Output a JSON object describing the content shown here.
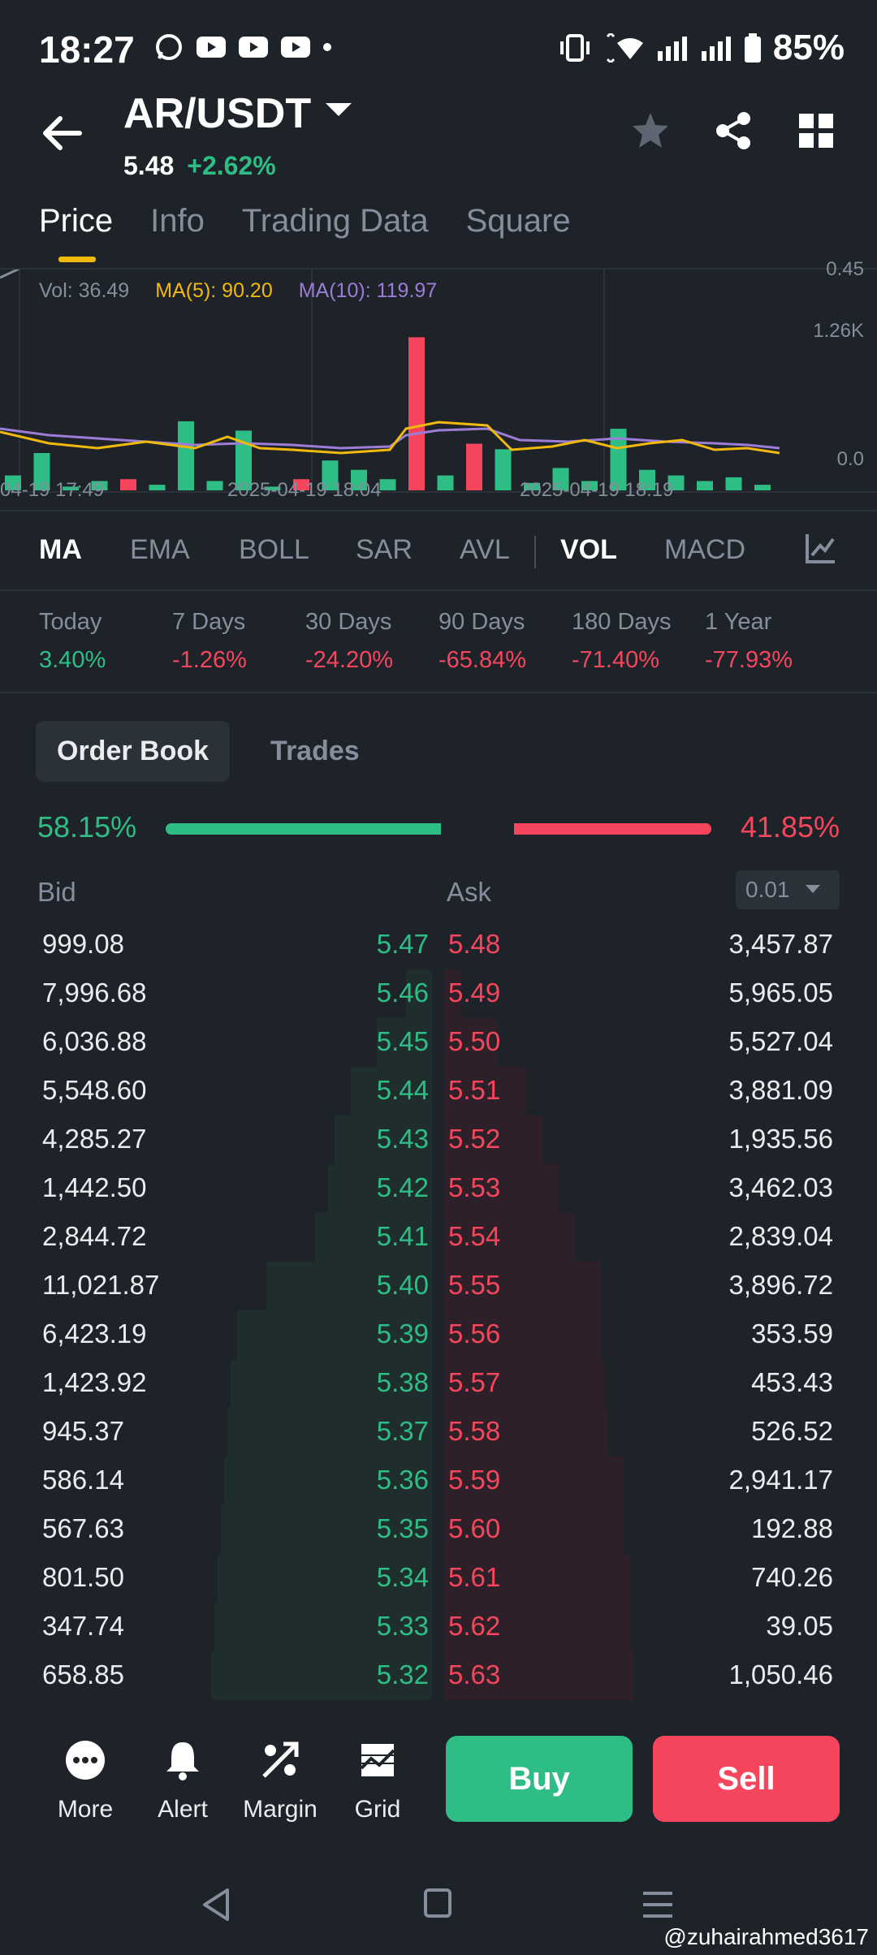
{
  "status_bar": {
    "time": "18:27",
    "battery": "85%"
  },
  "header": {
    "pair": "AR/USDT",
    "last_price": "5.48",
    "change": "+2.62%"
  },
  "tabs": [
    {
      "label": "Price",
      "active": true
    },
    {
      "label": "Info",
      "active": false
    },
    {
      "label": "Trading Data",
      "active": false
    },
    {
      "label": "Square",
      "active": false
    }
  ],
  "chart": {
    "vol": "Vol: 36.49",
    "ma5": "MA(5): 90.20",
    "ma10": "MA(10): 119.97",
    "y_top": "1.26K",
    "y_bottom": "0.0",
    "y_cut": "0.45",
    "x1": "04-19 17:49",
    "x2": "2025-04-19 18:04",
    "x3": "2025-04-19 18:19",
    "bars": [
      {
        "v": 0.08,
        "c": "g"
      },
      {
        "v": 0.2,
        "c": "g"
      },
      {
        "v": 0.02,
        "c": "g"
      },
      {
        "v": 0.05,
        "c": "g"
      },
      {
        "v": 0.06,
        "c": "r"
      },
      {
        "v": 0.03,
        "c": "g"
      },
      {
        "v": 0.37,
        "c": "g"
      },
      {
        "v": 0.05,
        "c": "g"
      },
      {
        "v": 0.32,
        "c": "g"
      },
      {
        "v": 0.02,
        "c": "g"
      },
      {
        "v": 0.06,
        "c": "r"
      },
      {
        "v": 0.16,
        "c": "g"
      },
      {
        "v": 0.11,
        "c": "g"
      },
      {
        "v": 0.06,
        "c": "g"
      },
      {
        "v": 0.82,
        "c": "r"
      },
      {
        "v": 0.08,
        "c": "g"
      },
      {
        "v": 0.25,
        "c": "r"
      },
      {
        "v": 0.22,
        "c": "g"
      },
      {
        "v": 0.04,
        "c": "g"
      },
      {
        "v": 0.12,
        "c": "g"
      },
      {
        "v": 0.05,
        "c": "g"
      },
      {
        "v": 0.33,
        "c": "g"
      },
      {
        "v": 0.11,
        "c": "g"
      },
      {
        "v": 0.08,
        "c": "g"
      },
      {
        "v": 0.05,
        "c": "g"
      },
      {
        "v": 0.07,
        "c": "g"
      },
      {
        "v": 0.03,
        "c": "g"
      }
    ]
  },
  "indicators": [
    "MA",
    "EMA",
    "BOLL",
    "SAR",
    "AVL",
    "VOL",
    "MACD"
  ],
  "periods": [
    {
      "label": "Today",
      "value": "3.40%",
      "dir": "up"
    },
    {
      "label": "7 Days",
      "value": "-1.26%",
      "dir": "down"
    },
    {
      "label": "30 Days",
      "value": "-24.20%",
      "dir": "down"
    },
    {
      "label": "90 Days",
      "value": "-65.84%",
      "dir": "down"
    },
    {
      "label": "180 Days",
      "value": "-71.40%",
      "dir": "down"
    },
    {
      "label": "1 Year",
      "value": "-77.93%",
      "dir": "down"
    }
  ],
  "orderbook": {
    "tab_book": "Order Book",
    "tab_trades": "Trades",
    "bid_pct": "58.15%",
    "ask_pct": "41.85%",
    "bid_ratio": 0.5815,
    "bid_label": "Bid",
    "ask_label": "Ask",
    "precision": "0.01",
    "rows": [
      {
        "bid_qty": "999.08",
        "bid_price": "5.47",
        "ask_price": "5.48",
        "ask_qty": "3,457.87",
        "bid_depth": 0.0,
        "ask_depth": 0.0
      },
      {
        "bid_qty": "7,996.68",
        "bid_price": "5.46",
        "ask_price": "5.49",
        "ask_qty": "5,965.05",
        "bid_depth": 0.08,
        "ask_depth": 0.05
      },
      {
        "bid_qty": "6,036.88",
        "bid_price": "5.45",
        "ask_price": "5.50",
        "ask_qty": "5,527.04",
        "bid_depth": 0.17,
        "ask_depth": 0.16
      },
      {
        "bid_qty": "5,548.60",
        "bid_price": "5.44",
        "ask_price": "5.51",
        "ask_qty": "3,881.09",
        "bid_depth": 0.25,
        "ask_depth": 0.25
      },
      {
        "bid_qty": "4,285.27",
        "bid_price": "5.43",
        "ask_price": "5.52",
        "ask_qty": "1,935.56",
        "bid_depth": 0.3,
        "ask_depth": 0.3
      },
      {
        "bid_qty": "1,442.50",
        "bid_price": "5.42",
        "ask_price": "5.53",
        "ask_qty": "3,462.03",
        "bid_depth": 0.32,
        "ask_depth": 0.35
      },
      {
        "bid_qty": "2,844.72",
        "bid_price": "5.41",
        "ask_price": "5.54",
        "ask_qty": "2,839.04",
        "bid_depth": 0.36,
        "ask_depth": 0.4
      },
      {
        "bid_qty": "11,021.87",
        "bid_price": "5.40",
        "ask_price": "5.55",
        "ask_qty": "3,896.72",
        "bid_depth": 0.51,
        "ask_depth": 0.48
      },
      {
        "bid_qty": "6,423.19",
        "bid_price": "5.39",
        "ask_price": "5.56",
        "ask_qty": "353.59",
        "bid_depth": 0.6,
        "ask_depth": 0.48
      },
      {
        "bid_qty": "1,423.92",
        "bid_price": "5.38",
        "ask_price": "5.57",
        "ask_qty": "453.43",
        "bid_depth": 0.62,
        "ask_depth": 0.49
      },
      {
        "bid_qty": "945.37",
        "bid_price": "5.37",
        "ask_price": "5.58",
        "ask_qty": "526.52",
        "bid_depth": 0.63,
        "ask_depth": 0.5
      },
      {
        "bid_qty": "586.14",
        "bid_price": "5.36",
        "ask_price": "5.59",
        "ask_qty": "2,941.17",
        "bid_depth": 0.64,
        "ask_depth": 0.55
      },
      {
        "bid_qty": "567.63",
        "bid_price": "5.35",
        "ask_price": "5.60",
        "ask_qty": "192.88",
        "bid_depth": 0.65,
        "ask_depth": 0.55
      },
      {
        "bid_qty": "801.50",
        "bid_price": "5.34",
        "ask_price": "5.61",
        "ask_qty": "740.26",
        "bid_depth": 0.66,
        "ask_depth": 0.57
      },
      {
        "bid_qty": "347.74",
        "bid_price": "5.33",
        "ask_price": "5.62",
        "ask_qty": "39.05",
        "bid_depth": 0.67,
        "ask_depth": 0.57
      },
      {
        "bid_qty": "658.85",
        "bid_price": "5.32",
        "ask_price": "5.63",
        "ask_qty": "1,050.46",
        "bid_depth": 0.68,
        "ask_depth": 0.58
      }
    ]
  },
  "actions": {
    "more": "More",
    "alert": "Alert",
    "margin": "Margin",
    "grid": "Grid",
    "buy": "Buy",
    "sell": "Sell"
  },
  "watermark": "@zuhairahmed3617",
  "colors": {
    "up": "#2ebd85",
    "down": "#f6465d",
    "accent": "#f0b90b",
    "bg": "#1e2329"
  },
  "icons": [
    "back-arrow-icon",
    "caret-down-icon",
    "star-icon",
    "share-icon",
    "grid-layout-icon",
    "chart-settings-icon",
    "more-icon",
    "bell-icon",
    "margin-icon",
    "grid-bot-icon"
  ]
}
